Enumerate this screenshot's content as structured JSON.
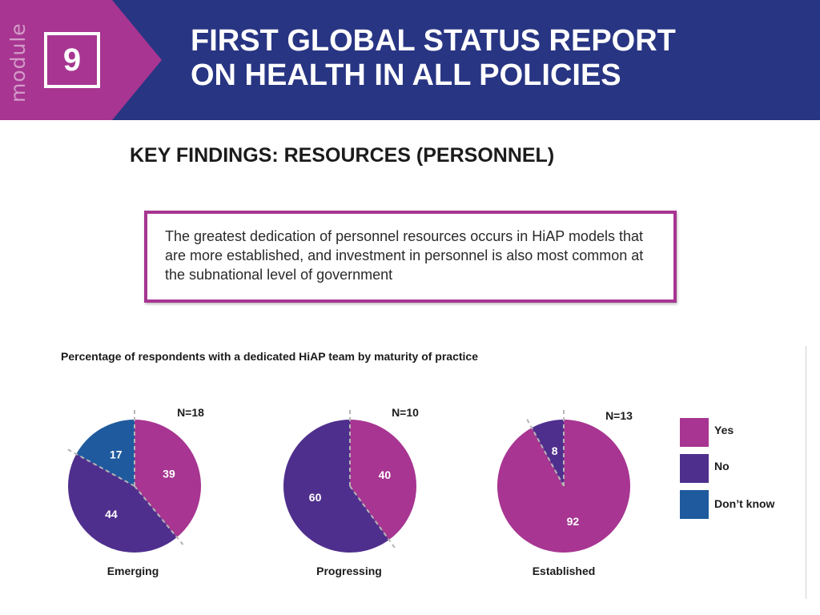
{
  "header": {
    "module_word": "module",
    "module_number": "9",
    "title_line1": "FIRST GLOBAL STATUS REPORT",
    "title_line2": "ON HEALTH IN ALL POLICIES"
  },
  "section_title": "KEY FINDINGS: RESOURCES (PERSONNEL)",
  "callout": {
    "text": "The greatest dedication of personnel resources occurs in HiAP models that are more established, and investment in personnel is also most common at the subnational level of government"
  },
  "colors": {
    "header_bg": "#283583",
    "accent": "#a73591",
    "yes": "#a73591",
    "no": "#4f2f8d",
    "dont_know": "#1f5a9e"
  },
  "chart_data": {
    "type": "pie",
    "title": "Percentage of respondents with a dedicated HiAP team by maturity of practice",
    "legend": {
      "placement": "right",
      "entries": [
        "Yes",
        "No",
        "Don’t know"
      ]
    },
    "charts": [
      {
        "category": "Emerging",
        "n_label": "N=18",
        "slices": [
          {
            "name": "Yes",
            "value": 39
          },
          {
            "name": "No",
            "value": 44
          },
          {
            "name": "Don’t know",
            "value": 17
          }
        ]
      },
      {
        "category": "Progressing",
        "n_label": "N=10",
        "slices": [
          {
            "name": "Yes",
            "value": 40
          },
          {
            "name": "No",
            "value": 60
          }
        ]
      },
      {
        "category": "Established",
        "n_label": "N=13",
        "slices": [
          {
            "name": "Yes",
            "value": 92
          },
          {
            "name": "No",
            "value": 8
          }
        ]
      }
    ]
  }
}
